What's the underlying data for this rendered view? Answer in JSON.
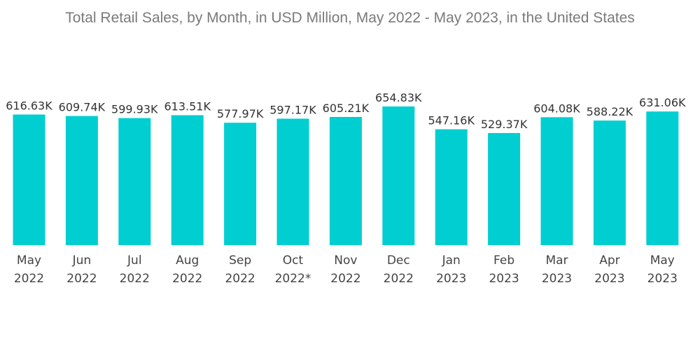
{
  "chart_data": {
    "type": "bar",
    "title": "Total Retail Sales,  by Month, in USD Million, May 2022 - May 2023, in the United States",
    "categories": [
      [
        "May",
        "2022"
      ],
      [
        "Jun",
        "2022"
      ],
      [
        "Jul",
        "2022"
      ],
      [
        "Aug",
        "2022"
      ],
      [
        "Sep",
        "2022"
      ],
      [
        "Oct",
        "2022*"
      ],
      [
        "Nov",
        "2022"
      ],
      [
        "Dec",
        "2022"
      ],
      [
        "Jan",
        "2023"
      ],
      [
        "Feb",
        "2023"
      ],
      [
        "Mar",
        "2023"
      ],
      [
        "Apr",
        "2023"
      ],
      [
        "May",
        "2023"
      ]
    ],
    "values": [
      616.63,
      609.74,
      599.93,
      613.51,
      577.97,
      597.17,
      605.21,
      654.83,
      547.16,
      529.37,
      604.08,
      588.22,
      631.06
    ],
    "value_labels": [
      "616.63K",
      "609.74K",
      "599.93K",
      "613.51K",
      "577.97K",
      "597.17K",
      "605.21K",
      "654.83K",
      "547.16K",
      "529.37K",
      "604.08K",
      "588.22K",
      "631.06K"
    ],
    "xlabel": "",
    "ylabel": "",
    "ylim": [
      0,
      654.83
    ],
    "grid": false,
    "bar_color": "#00CED1"
  }
}
